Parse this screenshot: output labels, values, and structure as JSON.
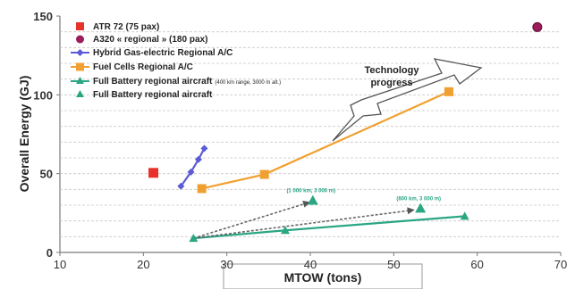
{
  "chart_data": {
    "type": "scatter",
    "title": "",
    "xlabel": "MTOW (tons)",
    "ylabel": "Overall Energy (GJ)",
    "xlim": [
      10,
      70
    ],
    "ylim": [
      0,
      150
    ],
    "x_ticks": [
      "10",
      "20",
      "30",
      "40",
      "50",
      "60",
      "70"
    ],
    "y_ticks": [
      "0",
      "50",
      "100",
      "150"
    ],
    "grid": "horizontal-dashed",
    "legend_position": "top-left",
    "series": [
      {
        "name": "ATR 72 (75 pax)",
        "color": "#e8312b",
        "marker": "square",
        "line": false,
        "points": [
          [
            21.2,
            50.5
          ]
        ]
      },
      {
        "name": "A320 « regional » (180 pax)",
        "color": "#9b1d5a",
        "marker": "circle",
        "line": false,
        "points": [
          [
            67.2,
            143
          ]
        ]
      },
      {
        "name": "Hybrid Gas-electric Regional A/C",
        "color": "#5b5bd6",
        "marker": "diamond",
        "line": true,
        "points": [
          [
            24.5,
            42
          ],
          [
            25.7,
            51
          ],
          [
            26.6,
            59
          ],
          [
            27.3,
            66
          ]
        ]
      },
      {
        "name": "Fuel Cells Regional A/C",
        "color": "#f0a030",
        "marker": "square",
        "line": true,
        "points": [
          [
            27.0,
            40.5
          ],
          [
            34.5,
            49.5
          ],
          [
            56.6,
            102
          ]
        ]
      },
      {
        "name": "Full Battery regional aircraft",
        "name_note": "(400 km range, 3000 m alt.)",
        "color": "#2aa683",
        "marker": "triangle",
        "line": true,
        "points": [
          [
            26.0,
            9
          ],
          [
            37.0,
            14
          ],
          [
            58.5,
            23
          ]
        ]
      },
      {
        "name": "Full Battery regional aircraft",
        "color": "#2aa683",
        "marker": "triangle",
        "line": false,
        "points": [
          [
            40.3,
            33
          ],
          [
            53.2,
            28
          ]
        ]
      }
    ],
    "arrows": [
      {
        "from": [
          26.0,
          9
        ],
        "to": [
          40.0,
          32
        ]
      },
      {
        "from": [
          26.0,
          9
        ],
        "to": [
          52.5,
          27
        ]
      }
    ],
    "annotations": [
      {
        "text": "(1 000 km, 3 000 m)",
        "at": [
          40.3,
          33
        ]
      },
      {
        "text": "(800 km, 3 000 m)",
        "at": [
          53.2,
          28
        ]
      }
    ],
    "callout": {
      "line1": "Technology",
      "line2": "progress"
    }
  }
}
